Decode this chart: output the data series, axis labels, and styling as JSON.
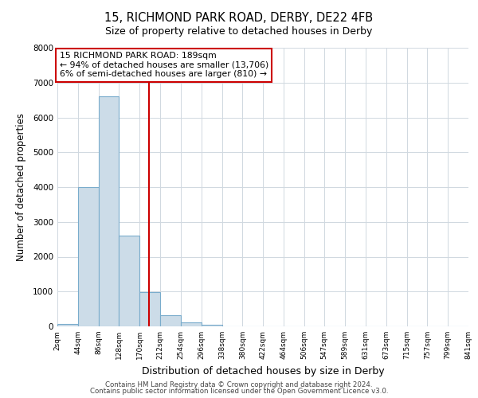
{
  "title_line1": "15, RICHMOND PARK ROAD, DERBY, DE22 4FB",
  "title_line2": "Size of property relative to detached houses in Derby",
  "xlabel": "Distribution of detached houses by size in Derby",
  "ylabel": "Number of detached properties",
  "bin_edges": [
    2,
    44,
    86,
    128,
    170,
    212,
    254,
    296,
    338,
    380,
    422,
    464,
    506,
    547,
    589,
    631,
    673,
    715,
    757,
    799,
    841
  ],
  "bin_labels": [
    "2sqm",
    "44sqm",
    "86sqm",
    "128sqm",
    "170sqm",
    "212sqm",
    "254sqm",
    "296sqm",
    "338sqm",
    "380sqm",
    "422sqm",
    "464sqm",
    "506sqm",
    "547sqm",
    "589sqm",
    "631sqm",
    "673sqm",
    "715sqm",
    "757sqm",
    "799sqm",
    "841sqm"
  ],
  "bar_heights": [
    60,
    4000,
    6600,
    2600,
    975,
    330,
    110,
    40,
    0,
    0,
    0,
    0,
    0,
    0,
    0,
    0,
    0,
    0,
    0,
    0
  ],
  "bar_color": "#ccdce8",
  "bar_edgecolor": "#7aaccc",
  "vline_color": "#cc0000",
  "vline_x": 189,
  "ylim": [
    0,
    8000
  ],
  "yticks": [
    0,
    1000,
    2000,
    3000,
    4000,
    5000,
    6000,
    7000,
    8000
  ],
  "annotation_text_line1": "15 RICHMOND PARK ROAD: 189sqm",
  "annotation_text_line2": "← 94% of detached houses are smaller (13,706)",
  "annotation_text_line3": "6% of semi-detached houses are larger (810) →",
  "footer_line1": "Contains HM Land Registry data © Crown copyright and database right 2024.",
  "footer_line2": "Contains public sector information licensed under the Open Government Licence v3.0.",
  "background_color": "#ffffff",
  "grid_color": "#d0d8e0"
}
